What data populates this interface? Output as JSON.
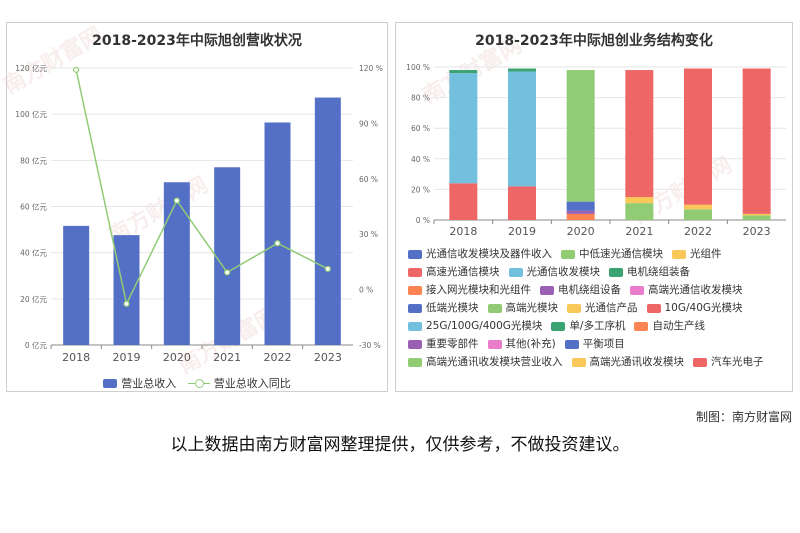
{
  "credit": "制图：南方财富网",
  "disclaimer": "以上数据由南方财富网整理提供，仅供参考，不做投资建议。",
  "watermark": {
    "cn": "南方财富网",
    "en": "southmoney.com"
  },
  "chart_data": [
    {
      "type": "bar",
      "title": "2018-2023年中际旭创营收状况",
      "categories": [
        "2018",
        "2019",
        "2020",
        "2021",
        "2022",
        "2023"
      ],
      "series": [
        {
          "name": "营业总收入",
          "kind": "bar",
          "axis": "left",
          "color": "#5470c6",
          "values": [
            51.6,
            47.6,
            70.5,
            77.0,
            96.4,
            107.2
          ]
        },
        {
          "name": "营业总收入同比",
          "kind": "line",
          "axis": "right",
          "color": "#91cc75",
          "values": [
            119,
            -7.7,
            48.2,
            9.3,
            25.1,
            11.2
          ]
        }
      ],
      "left_axis": {
        "ticks": [
          "0 亿元",
          "20 亿元",
          "40 亿元",
          "60 亿元",
          "80 亿元",
          "100 亿元",
          "120 亿元"
        ],
        "ylim": [
          0,
          120
        ]
      },
      "right_axis": {
        "ticks": [
          "-30 %",
          "0 %",
          "30 %",
          "60 %",
          "90 %",
          "120 %"
        ],
        "ylim": [
          -30,
          120
        ]
      },
      "grid": true,
      "legend_position": "bottom"
    },
    {
      "type": "bar",
      "stacked": true,
      "title": "2018-2023年中际旭创业务结构变化",
      "categories": [
        "2018",
        "2019",
        "2020",
        "2021",
        "2022",
        "2023"
      ],
      "y_ticks": [
        "0 %",
        "20 %",
        "40 %",
        "60 %",
        "80 %",
        "100 %"
      ],
      "ylim": [
        0,
        100
      ],
      "series": [
        {
          "name": "光通信收发模块及器件收入",
          "color": "#5470c6",
          "values": [
            0,
            0,
            0,
            0,
            0,
            0
          ]
        },
        {
          "name": "中低速光通信模块",
          "color": "#91cc75",
          "values": [
            0,
            0,
            0,
            0,
            0,
            0
          ]
        },
        {
          "name": "光组件",
          "color": "#fac858",
          "values": [
            0,
            0,
            0,
            0,
            0,
            0
          ]
        },
        {
          "name": "高速光通信模块",
          "color": "#ee6666",
          "values": [
            24,
            22,
            0,
            0,
            0,
            0
          ]
        },
        {
          "name": "光通信收发模块",
          "color": "#73c0de",
          "values": [
            72,
            75,
            0,
            0,
            0,
            0
          ]
        },
        {
          "name": "电机绕组装备",
          "color": "#3ba272",
          "values": [
            2,
            2,
            0,
            0,
            0,
            0
          ]
        },
        {
          "name": "接入网光模块和光组件",
          "color": "#fc8452",
          "values": [
            0,
            0,
            4,
            0,
            0,
            0
          ]
        },
        {
          "name": "电机绕组设备",
          "color": "#9a60b4",
          "values": [
            0,
            0,
            2,
            0,
            0,
            0
          ]
        },
        {
          "name": "高端光通信收发模块",
          "color": "#ea7ccc",
          "values": [
            0,
            0,
            0,
            0,
            0,
            0
          ]
        },
        {
          "name": "低端光模块",
          "color": "#5470c6",
          "values": [
            0,
            0,
            6,
            0,
            0,
            0
          ]
        },
        {
          "name": "高端光模块",
          "color": "#91cc75",
          "values": [
            0,
            0,
            86,
            0,
            0,
            0
          ]
        },
        {
          "name": "光通信产品",
          "color": "#fac858",
          "values": [
            0,
            0,
            0,
            0,
            0,
            0
          ]
        },
        {
          "name": "10G/40G光模块",
          "color": "#ee6666",
          "values": [
            0,
            0,
            0,
            0,
            0,
            0
          ]
        },
        {
          "name": "25G/100G/400G光模块",
          "color": "#73c0de",
          "values": [
            0,
            0,
            0,
            0,
            0,
            0
          ]
        },
        {
          "name": "单/多工序机",
          "color": "#3ba272",
          "values": [
            0,
            0,
            0,
            0,
            0,
            0
          ]
        },
        {
          "name": "自动生产线",
          "color": "#fc8452",
          "values": [
            0,
            0,
            0,
            0,
            0,
            0
          ]
        },
        {
          "name": "重要零部件",
          "color": "#9a60b4",
          "values": [
            0,
            0,
            0,
            0,
            0,
            0
          ]
        },
        {
          "name": "其他(补充)",
          "color": "#ea7ccc",
          "values": [
            0,
            0,
            0,
            0,
            0,
            0
          ]
        },
        {
          "name": "平衡项目",
          "color": "#5470c6",
          "values": [
            0,
            0,
            0,
            0,
            0,
            0
          ]
        },
        {
          "name": "高端光通讯收发模块营业收入",
          "color": "#91cc75",
          "values": [
            0,
            0,
            0,
            11,
            7,
            3
          ]
        },
        {
          "name": "高端光通讯收发模块",
          "color": "#fac858",
          "values": [
            0,
            0,
            0,
            4,
            3,
            1
          ]
        },
        {
          "name": "汽车光电子",
          "color": "#ee6666",
          "values": [
            0,
            0,
            0,
            83,
            89,
            95
          ]
        }
      ],
      "grid": true,
      "legend_position": "bottom"
    }
  ]
}
